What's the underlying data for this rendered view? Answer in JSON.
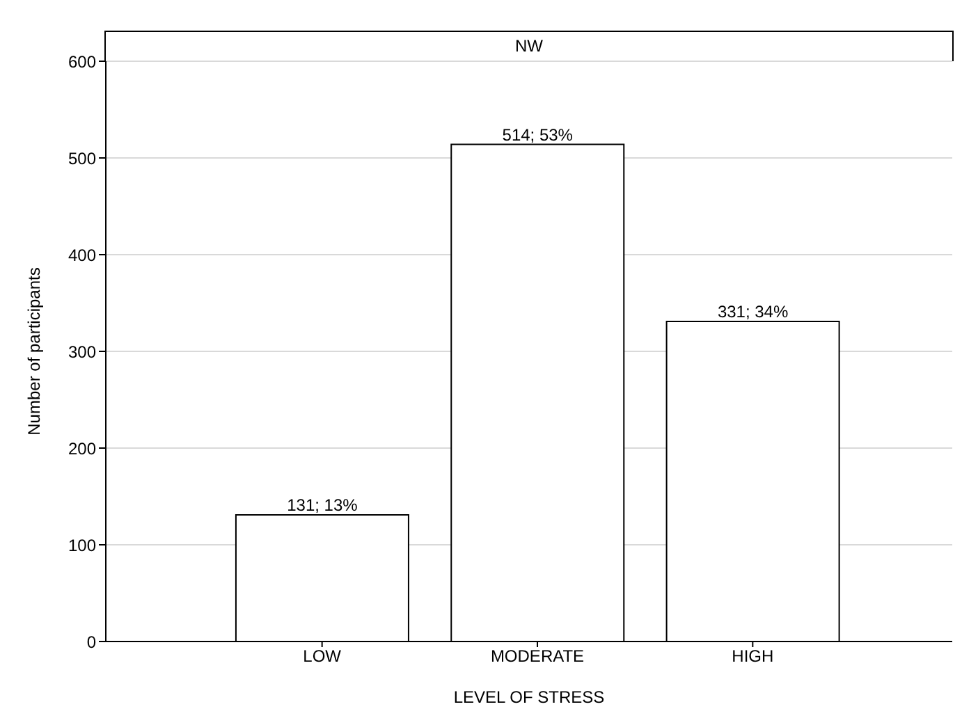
{
  "chart_data": {
    "type": "bar",
    "title": "NW",
    "xlabel": "LEVEL OF STRESS",
    "ylabel": "Number of participants",
    "categories": [
      "LOW",
      "MODERATE",
      "HIGH"
    ],
    "values": [
      131,
      514,
      331
    ],
    "value_labels": [
      "131; 13%",
      "514; 53%",
      "331; 34%"
    ],
    "color": "#ffffff",
    "ylim": [
      0,
      600
    ],
    "yticks": [
      0,
      100,
      200,
      300,
      400,
      500,
      600
    ],
    "grid": "y"
  }
}
